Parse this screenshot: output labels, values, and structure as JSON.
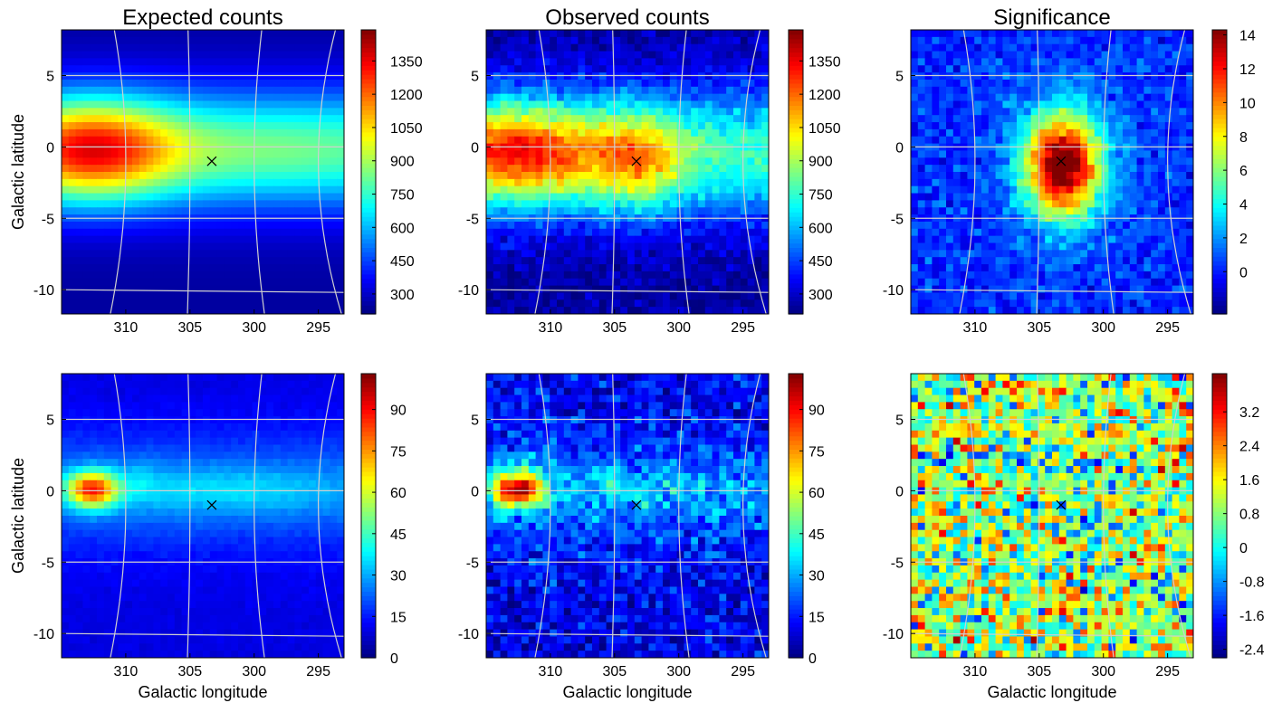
{
  "chart_data": [
    {
      "type": "heatmap",
      "panel": "top-left",
      "title": "Expected counts",
      "xlabel": "",
      "ylabel": "Galactic latitude",
      "xticks": [
        "310",
        "305",
        "300",
        "295"
      ],
      "xtick_values": [
        310,
        305,
        300,
        295
      ],
      "yticks": [
        "5",
        "0",
        "-5",
        "-10"
      ],
      "ytick_values": [
        5,
        0,
        -5,
        -10
      ],
      "xlim": [
        315,
        293
      ],
      "ylim": [
        -11.7,
        8.2
      ],
      "colorbar": {
        "colormap": "jet",
        "range": [
          210,
          1490
        ],
        "ticks": [
          "300",
          "450",
          "600",
          "750",
          "900",
          "1050",
          "1200",
          "1350"
        ],
        "tick_values": [
          300,
          450,
          600,
          750,
          900,
          1050,
          1200,
          1350
        ]
      },
      "grid": true,
      "marker": {
        "symbol": "x",
        "l": 303.3,
        "b": -1.0
      },
      "model": {
        "kind": "expected",
        "min": 210,
        "max": 1440
      }
    },
    {
      "type": "heatmap",
      "panel": "top-middle",
      "title": "Observed counts",
      "xlabel": "",
      "ylabel": "",
      "xticks": [
        "310",
        "305",
        "300",
        "295"
      ],
      "xtick_values": [
        310,
        305,
        300,
        295
      ],
      "yticks": [
        "5",
        "0",
        "-5",
        "-10"
      ],
      "ytick_values": [
        5,
        0,
        -5,
        -10
      ],
      "xlim": [
        315,
        293
      ],
      "ylim": [
        -11.7,
        8.2
      ],
      "colorbar": {
        "colormap": "jet",
        "range": [
          210,
          1490
        ],
        "ticks": [
          "300",
          "450",
          "600",
          "750",
          "900",
          "1050",
          "1200",
          "1350"
        ],
        "tick_values": [
          300,
          450,
          600,
          750,
          900,
          1050,
          1200,
          1350
        ]
      },
      "grid": true,
      "marker": {
        "symbol": "x",
        "l": 303.3,
        "b": -1.0
      },
      "model": {
        "kind": "observed",
        "min": 210,
        "max": 1440
      }
    },
    {
      "type": "heatmap",
      "panel": "top-right",
      "title": "Significance",
      "xlabel": "",
      "ylabel": "",
      "xticks": [
        "310",
        "305",
        "300",
        "295"
      ],
      "xtick_values": [
        310,
        305,
        300,
        295
      ],
      "yticks": [
        "5",
        "0",
        "-5",
        "-10"
      ],
      "ytick_values": [
        5,
        0,
        -5,
        -10
      ],
      "xlim": [
        315,
        293
      ],
      "ylim": [
        -11.7,
        8.2
      ],
      "colorbar": {
        "colormap": "jet",
        "range": [
          -2.5,
          14.3
        ],
        "ticks": [
          "0",
          "2",
          "4",
          "6",
          "8",
          "10",
          "12",
          "14"
        ],
        "tick_values": [
          0,
          2,
          4,
          6,
          8,
          10,
          12,
          14
        ]
      },
      "grid": true,
      "marker": {
        "symbol": "x",
        "l": 303.3,
        "b": -1.0
      },
      "model": {
        "kind": "significance",
        "min": -2.3,
        "max": 14.3
      }
    },
    {
      "type": "heatmap",
      "panel": "bottom-left",
      "title": "",
      "xlabel": "Galactic longitude",
      "ylabel": "Galactic latitude",
      "xticks": [
        "310",
        "305",
        "300",
        "295"
      ],
      "xtick_values": [
        310,
        305,
        300,
        295
      ],
      "yticks": [
        "5",
        "0",
        "-5",
        "-10"
      ],
      "ytick_values": [
        5,
        0,
        -5,
        -10
      ],
      "xlim": [
        315,
        293
      ],
      "ylim": [
        -11.7,
        8.2
      ],
      "colorbar": {
        "colormap": "jet",
        "range": [
          0,
          103
        ],
        "ticks": [
          "0",
          "15",
          "30",
          "45",
          "60",
          "75",
          "90"
        ],
        "tick_values": [
          0,
          15,
          30,
          45,
          60,
          75,
          90
        ]
      },
      "grid": true,
      "marker": {
        "symbol": "x",
        "l": 303.3,
        "b": -1.0
      },
      "model": {
        "kind": "expected_low",
        "min": 0,
        "max": 103
      }
    },
    {
      "type": "heatmap",
      "panel": "bottom-middle",
      "title": "",
      "xlabel": "Galactic longitude",
      "ylabel": "",
      "xticks": [
        "310",
        "305",
        "300",
        "295"
      ],
      "xtick_values": [
        310,
        305,
        300,
        295
      ],
      "yticks": [
        "5",
        "0",
        "-5",
        "-10"
      ],
      "ytick_values": [
        5,
        0,
        -5,
        -10
      ],
      "xlim": [
        315,
        293
      ],
      "ylim": [
        -11.7,
        8.2
      ],
      "colorbar": {
        "colormap": "jet",
        "range": [
          0,
          103
        ],
        "ticks": [
          "0",
          "15",
          "30",
          "45",
          "60",
          "75",
          "90"
        ],
        "tick_values": [
          0,
          15,
          30,
          45,
          60,
          75,
          90
        ]
      },
      "grid": true,
      "marker": {
        "symbol": "x",
        "l": 303.3,
        "b": -1.0
      },
      "model": {
        "kind": "observed_low",
        "min": 0,
        "max": 103
      }
    },
    {
      "type": "heatmap",
      "panel": "bottom-right",
      "title": "",
      "xlabel": "Galactic longitude",
      "ylabel": "",
      "xticks": [
        "310",
        "305",
        "300",
        "295"
      ],
      "xtick_values": [
        310,
        305,
        300,
        295
      ],
      "yticks": [
        "5",
        "0",
        "-5",
        "-10"
      ],
      "ytick_values": [
        5,
        0,
        -5,
        -10
      ],
      "xlim": [
        315,
        293
      ],
      "ylim": [
        -11.7,
        8.2
      ],
      "colorbar": {
        "colormap": "jet",
        "range": [
          -2.6,
          4.1
        ],
        "ticks": [
          "-2.4",
          "-1.6",
          "-0.8",
          "0",
          "0.8",
          "1.6",
          "2.4",
          "3.2"
        ],
        "tick_values": [
          -2.4,
          -1.6,
          -0.8,
          0,
          0.8,
          1.6,
          2.4,
          3.2
        ]
      },
      "grid": true,
      "marker": {
        "symbol": "x",
        "l": 303.3,
        "b": -1.0
      },
      "model": {
        "kind": "noise_significance",
        "min": -2.6,
        "max": 4.1
      }
    }
  ]
}
